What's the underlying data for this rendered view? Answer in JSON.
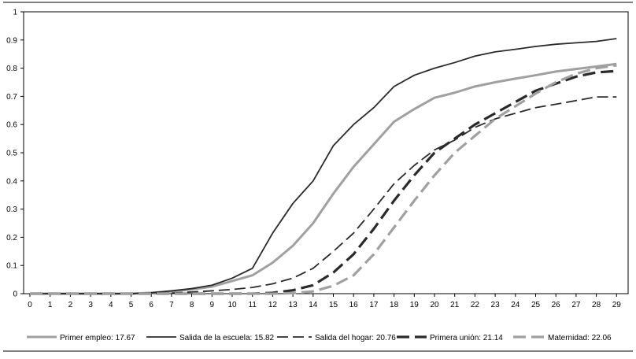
{
  "chart_data": {
    "type": "line",
    "title": "",
    "xlabel": "",
    "ylabel": "",
    "ylim": [
      0,
      1
    ],
    "grid": false,
    "legend_position": "bottom",
    "x": [
      0,
      1,
      2,
      3,
      4,
      5,
      6,
      7,
      8,
      9,
      10,
      11,
      12,
      13,
      14,
      15,
      16,
      17,
      18,
      19,
      20,
      21,
      22,
      23,
      24,
      25,
      26,
      27,
      28,
      29
    ],
    "yticks": [
      "0",
      "0.1",
      "0.2",
      "0.3",
      "0.4",
      "0.5",
      "0.6",
      "0.7",
      "0.8",
      "0.9",
      "1"
    ],
    "xticks": [
      "0",
      "1",
      "2",
      "3",
      "4",
      "5",
      "6",
      "7",
      "8",
      "9",
      "10",
      "11",
      "12",
      "13",
      "14",
      "15",
      "16",
      "17",
      "18",
      "19",
      "20",
      "21",
      "22",
      "23",
      "24",
      "25",
      "26",
      "27",
      "28",
      "29"
    ],
    "series": [
      {
        "name": "Primer empleo: 17.67",
        "color": "#a0a0a0",
        "style": "solid",
        "weight": "thick",
        "values": [
          0,
          0,
          0,
          0,
          0,
          0,
          0.003,
          0.008,
          0.015,
          0.025,
          0.045,
          0.065,
          0.11,
          0.17,
          0.25,
          0.355,
          0.45,
          0.53,
          0.61,
          0.655,
          0.695,
          0.713,
          0.735,
          0.75,
          0.763,
          0.775,
          0.788,
          0.797,
          0.806,
          0.815
        ]
      },
      {
        "name": "Salida de la escuela: 15.82",
        "color": "#2a2a2a",
        "style": "solid",
        "weight": "normal",
        "values": [
          0,
          0,
          0,
          0,
          0,
          0,
          0.003,
          0.01,
          0.018,
          0.03,
          0.055,
          0.09,
          0.215,
          0.32,
          0.4,
          0.525,
          0.6,
          0.66,
          0.735,
          0.775,
          0.8,
          0.82,
          0.843,
          0.858,
          0.867,
          0.877,
          0.885,
          0.89,
          0.895,
          0.905
        ]
      },
      {
        "name": "Salida del hogar: 20.76",
        "color": "#2a2a2a",
        "style": "dash",
        "weight": "normal",
        "values": [
          0,
          0,
          0,
          0,
          0,
          0,
          0,
          0.002,
          0.006,
          0.01,
          0.015,
          0.022,
          0.035,
          0.055,
          0.09,
          0.15,
          0.215,
          0.3,
          0.39,
          0.455,
          0.51,
          0.545,
          0.59,
          0.62,
          0.64,
          0.66,
          0.672,
          0.685,
          0.698,
          0.698
        ]
      },
      {
        "name": "Primera unión: 21.14",
        "color": "#2a2a2a",
        "style": "dash-bold",
        "weight": "thick",
        "values": [
          0,
          0,
          0,
          0,
          0,
          0,
          0,
          0,
          0,
          0,
          0,
          0,
          0.003,
          0.012,
          0.03,
          0.075,
          0.14,
          0.23,
          0.33,
          0.42,
          0.5,
          0.55,
          0.6,
          0.64,
          0.68,
          0.72,
          0.745,
          0.77,
          0.785,
          0.79
        ]
      },
      {
        "name": "Maternidad: 22.06",
        "color": "#a0a0a0",
        "style": "dash-bold",
        "weight": "thick",
        "values": [
          0,
          0,
          0,
          0,
          0,
          0,
          0,
          0,
          0,
          0,
          0,
          0,
          0,
          0.002,
          0.008,
          0.028,
          0.065,
          0.14,
          0.235,
          0.33,
          0.42,
          0.5,
          0.56,
          0.62,
          0.665,
          0.71,
          0.75,
          0.78,
          0.8,
          0.81
        ]
      }
    ]
  }
}
